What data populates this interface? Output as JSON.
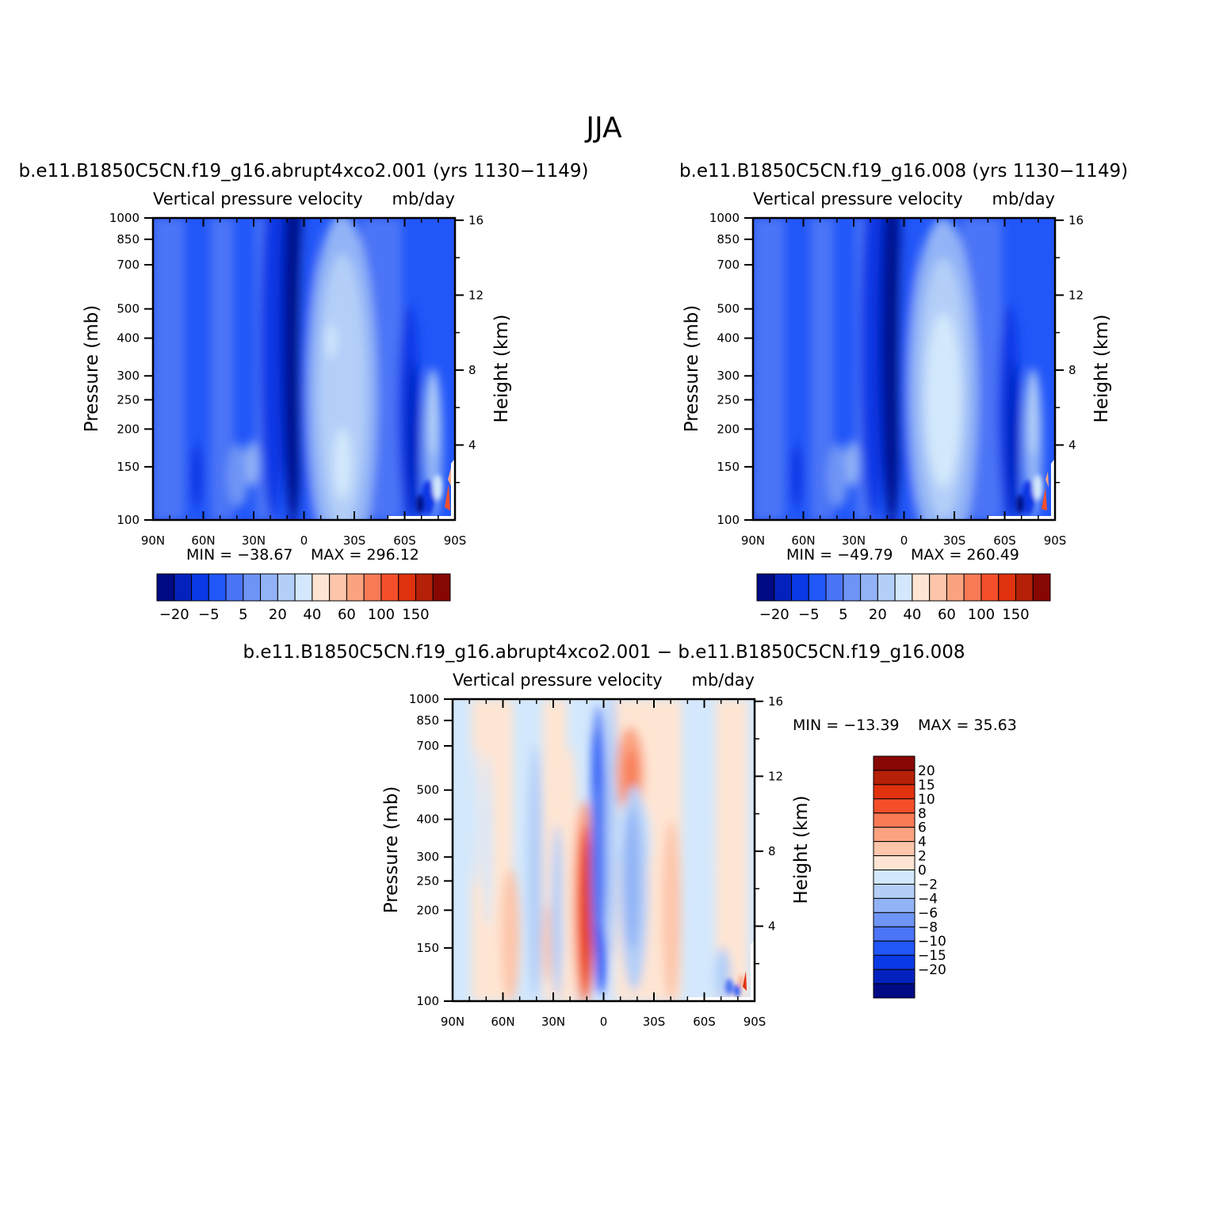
{
  "figure_title": "JJA",
  "colors": {
    "warm": [
      "#fee5d3",
      "#fdc6ab",
      "#fba381",
      "#f87a55",
      "#f44f2a",
      "#e0320f",
      "#b52008",
      "#870703"
    ],
    "cool": [
      "#d3e8fc",
      "#b3cff8",
      "#92b3f6",
      "#6e94f5",
      "#4b74f6",
      "#2156f8",
      "#0a39e6",
      "#0322bd",
      "#000a84"
    ]
  },
  "chart_data": [
    {
      "type": "contour",
      "title": "b.e11.B1850C5CN.f19_g16.abrupt4xco2.001 (yrs 1130−1149)",
      "subtitle_left": "Vertical pressure velocity",
      "subtitle_right": "mb/day",
      "ylabel": "Pressure (mb)",
      "y2label": "Height (km)",
      "xticks": [
        "90N",
        "60N",
        "30N",
        "0",
        "30S",
        "60S",
        "90S"
      ],
      "yticks": [
        "100",
        "150",
        "200",
        "250",
        "300",
        "400",
        "500",
        "700",
        "850",
        "1000"
      ],
      "y2ticks": [
        "16",
        "12",
        "8",
        "4"
      ],
      "min_label": "MIN = −38.67",
      "max_label": "MAX = 296.12",
      "min": -38.67,
      "max": 296.12,
      "legend_labels": [
        "−20",
        "−5",
        "5",
        "20",
        "40",
        "60",
        "100",
        "150"
      ]
    },
    {
      "type": "contour",
      "title": "b.e11.B1850C5CN.f19_g16.008 (yrs 1130−1149)",
      "subtitle_left": "Vertical pressure velocity",
      "subtitle_right": "mb/day",
      "ylabel": "Pressure (mb)",
      "y2label": "Height (km)",
      "xticks": [
        "90N",
        "60N",
        "30N",
        "0",
        "30S",
        "60S",
        "90S"
      ],
      "yticks": [
        "100",
        "150",
        "200",
        "250",
        "300",
        "400",
        "500",
        "700",
        "850",
        "1000"
      ],
      "y2ticks": [
        "16",
        "12",
        "8",
        "4"
      ],
      "min_label": "MIN = −49.79",
      "max_label": "MAX = 260.49",
      "min": -49.79,
      "max": 260.49,
      "legend_labels": [
        "−20",
        "−5",
        "5",
        "20",
        "40",
        "60",
        "100",
        "150"
      ]
    },
    {
      "type": "contour",
      "title": "b.e11.B1850C5CN.f19_g16.abrupt4xco2.001 − b.e11.B1850C5CN.f19_g16.008",
      "subtitle_left": "Vertical pressure velocity",
      "subtitle_right": "mb/day",
      "ylabel": "Pressure (mb)",
      "y2label": "Height (km)",
      "xticks": [
        "90N",
        "60N",
        "30N",
        "0",
        "30S",
        "60S",
        "90S"
      ],
      "yticks": [
        "100",
        "150",
        "200",
        "250",
        "300",
        "400",
        "500",
        "700",
        "850",
        "1000"
      ],
      "y2ticks": [
        "16",
        "12",
        "8",
        "4"
      ],
      "min_label": "MIN = −13.39",
      "max_label": "MAX =  35.63",
      "min": -13.39,
      "max": 35.63,
      "legend_labels": [
        "20",
        "15",
        "10",
        "8",
        "6",
        "4",
        "2",
        "0",
        "−2",
        "−4",
        "−6",
        "−8",
        "−10",
        "−15",
        "−20"
      ]
    }
  ]
}
